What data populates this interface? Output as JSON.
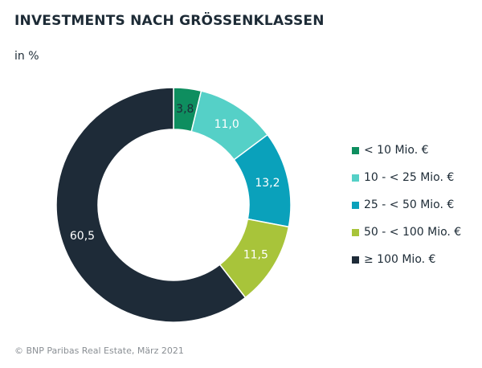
{
  "chart_data": {
    "type": "pie",
    "title": "INVESTMENTS NACH GRÖSSENKLASSEN",
    "subtitle": "in %",
    "source": "© BNP Paribas Real Estate, März 2021",
    "legend_position": "right",
    "categories": [
      "< 10 Mio. €",
      "10 - < 25 Mio. €",
      "25 - < 50 Mio. €",
      "50 - < 100 Mio. €",
      "≥ 100 Mio. €"
    ],
    "values": [
      3.8,
      11.0,
      13.2,
      11.5,
      60.5
    ],
    "value_labels": [
      "3,8",
      "11,0",
      "13,2",
      "11,5",
      "60,5"
    ],
    "colors": [
      "#0e8e5f",
      "#55d0c7",
      "#0aa1bb",
      "#a8c43a",
      "#1e2b38"
    ]
  }
}
